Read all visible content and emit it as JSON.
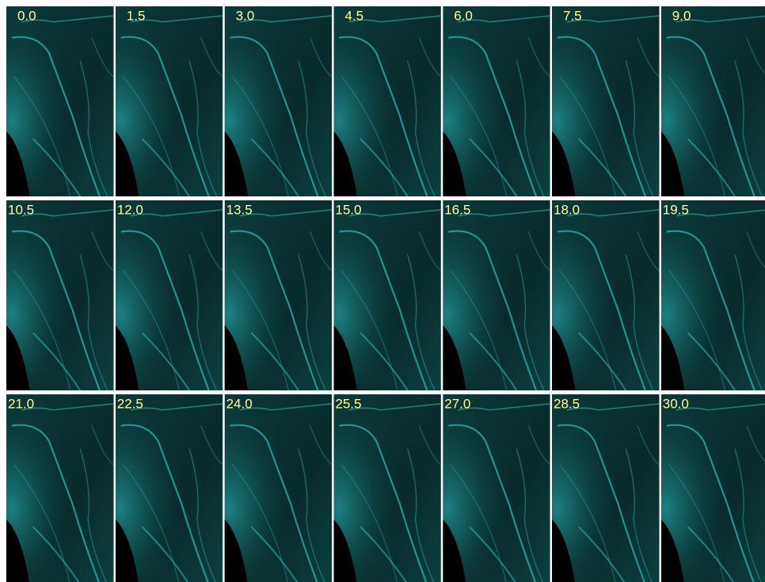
{
  "frames": {
    "rows": [
      [
        "0.0",
        "1.5",
        "3.0",
        "4.5",
        "6.0",
        "7.5",
        "9.0"
      ],
      [
        "10.5",
        "12.0",
        "13.5",
        "15.0",
        "16.5",
        "18.0",
        "19.5"
      ],
      [
        "21.0",
        "22.5",
        "24.0",
        "25.5",
        "27.0",
        "28.5",
        "30.0"
      ]
    ]
  }
}
